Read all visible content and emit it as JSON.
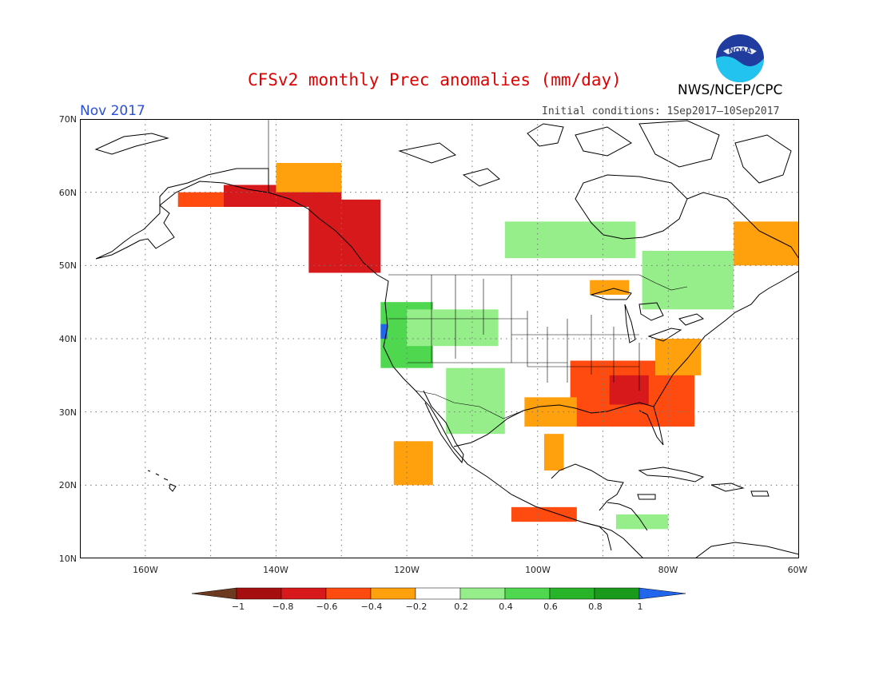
{
  "title": "CFSv2 monthly Prec anomalies (mm/day)",
  "agency": "NWS/NCEP/CPC",
  "logo_text": "NOAA",
  "month": "Nov 2017",
  "initial_conditions": "Initial conditions: 1Sep2017–10Sep2017",
  "lat_labels": [
    "70N",
    "60N",
    "50N",
    "40N",
    "30N",
    "20N",
    "10N"
  ],
  "lon_labels": [
    "160W",
    "140W",
    "120W",
    "100W",
    "80W",
    "60W"
  ],
  "colorbar": {
    "labels": [
      "−1",
      "−0.8",
      "−0.6",
      "−0.4",
      "−0.2",
      "0.2",
      "0.4",
      "0.6",
      "0.8",
      "1"
    ],
    "colors": [
      "#6b3a1f",
      "#a50f0f",
      "#d7191c",
      "#ff4a10",
      "#ffa00c",
      "#ffffff",
      "#96ee8a",
      "#4fd84f",
      "#28b428",
      "#1a9a1a",
      "#2266ee"
    ]
  },
  "chart_data": {
    "type": "heatmap",
    "variable": "Precipitation anomaly",
    "units": "mm/day",
    "valid_month": "Nov 2017",
    "domain": {
      "lon": [
        -170,
        -60
      ],
      "lat": [
        10,
        70
      ]
    },
    "color_levels": [
      -1,
      -0.8,
      -0.6,
      -0.4,
      -0.2,
      0.2,
      0.4,
      0.6,
      0.8,
      1
    ],
    "regions": [
      {
        "lon": [
          -148,
          -130
        ],
        "lat": [
          58,
          61
        ],
        "value": -0.8
      },
      {
        "lon": [
          -155,
          -148
        ],
        "lat": [
          58,
          60
        ],
        "value": -0.5
      },
      {
        "lon": [
          -140,
          -130
        ],
        "lat": [
          60,
          64
        ],
        "value": -0.3
      },
      {
        "lon": [
          -135,
          -124
        ],
        "lat": [
          49,
          59
        ],
        "value": -0.7
      },
      {
        "lon": [
          -124,
          -116
        ],
        "lat": [
          36,
          45
        ],
        "value": 0.4
      },
      {
        "lon": [
          -124,
          -123
        ],
        "lat": [
          40,
          42
        ],
        "value": 1.05
      },
      {
        "lon": [
          -120,
          -106
        ],
        "lat": [
          39,
          44
        ],
        "value": 0.3
      },
      {
        "lon": [
          -114,
          -105
        ],
        "lat": [
          27,
          36
        ],
        "value": 0.3
      },
      {
        "lon": [
          -95,
          -76
        ],
        "lat": [
          28,
          37
        ],
        "value": -0.6
      },
      {
        "lon": [
          -89,
          -83
        ],
        "lat": [
          31,
          35
        ],
        "value": -0.8
      },
      {
        "lon": [
          -82,
          -75
        ],
        "lat": [
          35,
          40
        ],
        "value": -0.4
      },
      {
        "lon": [
          -102,
          -94
        ],
        "lat": [
          28,
          32
        ],
        "value": -0.3
      },
      {
        "lon": [
          -99,
          -96
        ],
        "lat": [
          22,
          27
        ],
        "value": -0.3
      },
      {
        "lon": [
          -84,
          -70
        ],
        "lat": [
          44,
          52
        ],
        "value": 0.3
      },
      {
        "lon": [
          -88,
          -80
        ],
        "lat": [
          14,
          16
        ],
        "value": 0.3
      },
      {
        "lon": [
          -104,
          -94
        ],
        "lat": [
          15,
          17
        ],
        "value": -0.6
      },
      {
        "lon": [
          -70,
          -60
        ],
        "lat": [
          50,
          56
        ],
        "value": -0.3
      },
      {
        "lon": [
          -122,
          -116
        ],
        "lat": [
          20,
          26
        ],
        "value": -0.3
      },
      {
        "lon": [
          -105,
          -85
        ],
        "lat": [
          51,
          56
        ],
        "value": 0.25
      },
      {
        "lon": [
          -92,
          -86
        ],
        "lat": [
          46,
          48
        ],
        "value": -0.3
      }
    ]
  }
}
